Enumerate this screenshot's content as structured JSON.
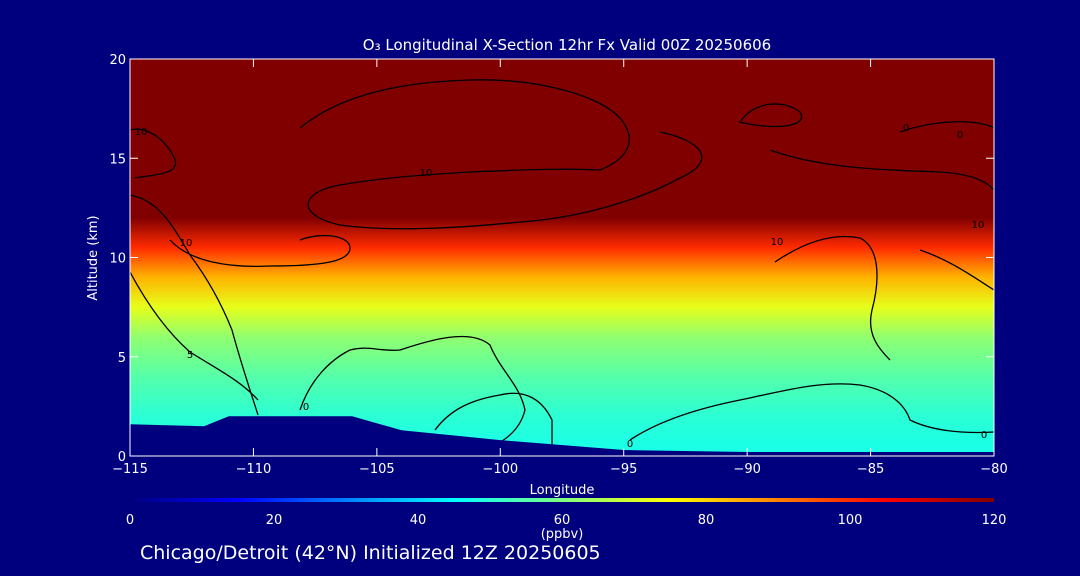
{
  "chart_data": {
    "type": "heatmap",
    "title": "O₃ Longitudinal X-Section 12hr  Fx Valid 00Z 20250606",
    "xlabel": "Longitude",
    "ylabel": "Altitude (km)",
    "xlim": [
      -115,
      -80
    ],
    "ylim": [
      0,
      20
    ],
    "x_ticks": [
      -115,
      -110,
      -105,
      -100,
      -95,
      -90,
      -85,
      -80
    ],
    "y_ticks": [
      0,
      5,
      10,
      15,
      20
    ],
    "contour_labels": [
      "0",
      "5",
      "10"
    ],
    "colorbar": {
      "unit": "(ppbv)",
      "ticks": [
        0,
        20,
        40,
        60,
        80,
        100,
        120
      ],
      "range": [
        0,
        120
      ],
      "colors": [
        "#00007f",
        "#0000ff",
        "#0080ff",
        "#00ffff",
        "#80ff80",
        "#ffff00",
        "#ff8000",
        "#ff0000",
        "#800000"
      ]
    },
    "layers_ppbv": [
      {
        "altitude_km": 0.5,
        "value": 48
      },
      {
        "altitude_km": 2,
        "value": 50
      },
      {
        "altitude_km": 4,
        "value": 55
      },
      {
        "altitude_km": 6,
        "value": 62
      },
      {
        "altitude_km": 7.5,
        "value": 72
      },
      {
        "altitude_km": 9,
        "value": 84
      },
      {
        "altitude_km": 10.5,
        "value": 100
      },
      {
        "altitude_km": 12,
        "value": 120
      },
      {
        "altitude_km": 20,
        "value": 120
      }
    ],
    "terrain_km": [
      {
        "lon": -115,
        "alt": 1.6
      },
      {
        "lon": -112,
        "alt": 1.5
      },
      {
        "lon": -111,
        "alt": 2.0
      },
      {
        "lon": -106,
        "alt": 2.0
      },
      {
        "lon": -104,
        "alt": 1.3
      },
      {
        "lon": -100,
        "alt": 0.8
      },
      {
        "lon": -95,
        "alt": 0.3
      },
      {
        "lon": -90,
        "alt": 0.2
      },
      {
        "lon": -80,
        "alt": 0.2
      }
    ]
  },
  "footer": "Chicago/Detroit (42°N) Initialized 12Z 20250605"
}
